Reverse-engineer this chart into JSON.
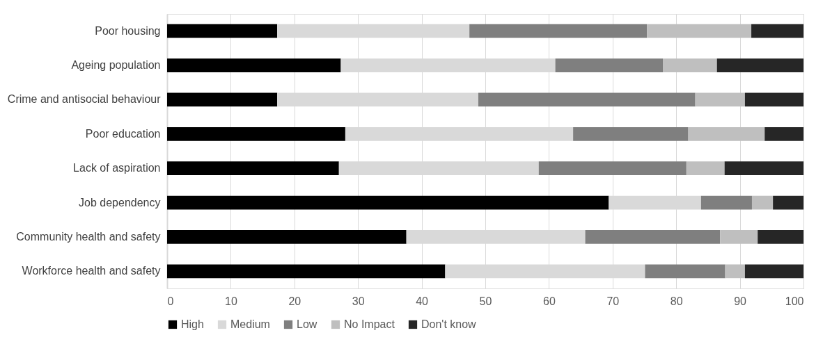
{
  "chart_data": {
    "type": "bar",
    "orientation": "horizontal",
    "stacked": true,
    "categories": [
      "Poor housing",
      "Ageing population",
      "Crime and antisocial behaviour",
      "Poor education",
      "Lack of aspiration",
      "Job dependency",
      "Community health and safety",
      "Workforce health and safety"
    ],
    "series": [
      {
        "name": "High",
        "color": "#000000",
        "values": [
          17.3,
          27.3,
          17.3,
          28.0,
          27.0,
          69.4,
          37.6,
          43.7
        ]
      },
      {
        "name": "Medium",
        "color": "#d9d9d9",
        "values": [
          30.2,
          33.7,
          31.6,
          35.8,
          31.4,
          14.5,
          28.1,
          31.4
        ]
      },
      {
        "name": "Low",
        "color": "#7f7f7f",
        "values": [
          27.9,
          16.9,
          34.1,
          18.1,
          23.2,
          8.0,
          21.2,
          12.6
        ]
      },
      {
        "name": "No Impact",
        "color": "#bfbfbf",
        "values": [
          16.4,
          8.5,
          7.8,
          12.0,
          6.0,
          3.3,
          5.9,
          3.1
        ]
      },
      {
        "name": "Don't know",
        "color": "#262626",
        "values": [
          8.2,
          13.6,
          9.2,
          6.1,
          12.4,
          4.8,
          7.2,
          9.2
        ]
      }
    ],
    "xlim": [
      0,
      100
    ],
    "xticks": [
      0,
      10,
      20,
      30,
      40,
      50,
      60,
      70,
      80,
      90,
      100
    ],
    "grid": "x",
    "legend": "bottom"
  }
}
